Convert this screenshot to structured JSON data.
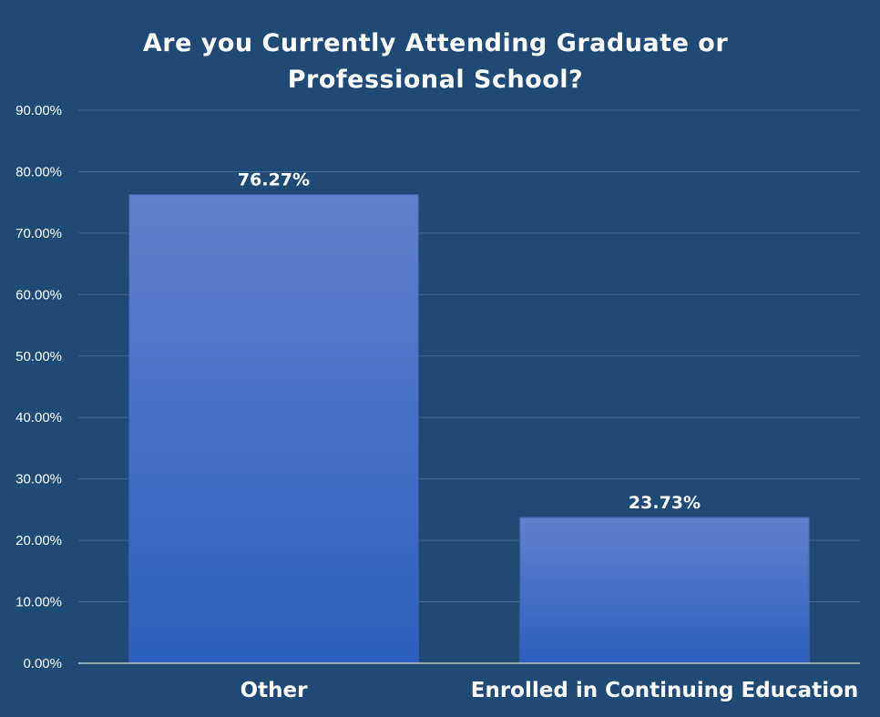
{
  "chart_data": {
    "type": "bar",
    "title_lines": [
      "Are you Currently Attending Graduate or",
      "Professional School?"
    ],
    "categories": [
      "Other",
      "Enrolled in Continuing Education"
    ],
    "values": [
      76.27,
      23.73
    ],
    "data_labels": [
      "76.27%",
      "23.73%"
    ],
    "ylim": [
      0,
      90
    ],
    "yticks": [
      0,
      10,
      20,
      30,
      40,
      50,
      60,
      70,
      80,
      90
    ],
    "ytick_labels": [
      "0.00%",
      "10.00%",
      "20.00%",
      "30.00%",
      "40.00%",
      "50.00%",
      "60.00%",
      "70.00%",
      "80.00%",
      "90.00%"
    ],
    "grid": true,
    "legend": "none",
    "colors": {
      "background": "#1f4a75",
      "bar_top": "#5f82cc",
      "bar_bottom": "#2d5fbf",
      "gridline": "#3f6792",
      "text": "#ffffff"
    }
  }
}
